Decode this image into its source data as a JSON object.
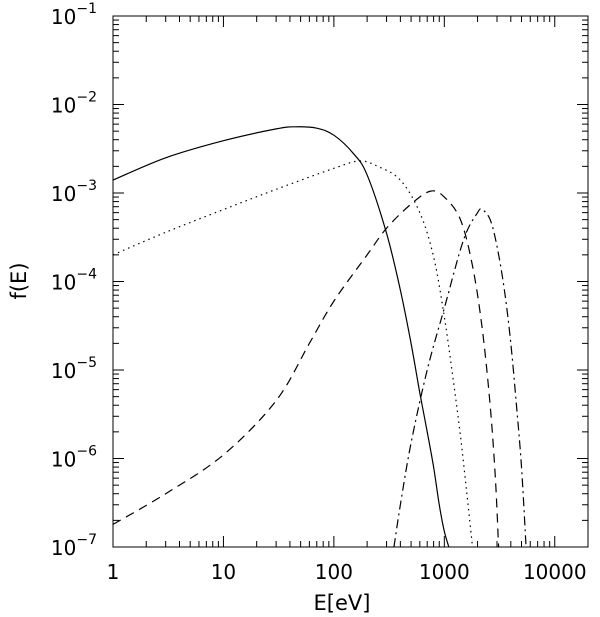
{
  "chart_data": {
    "type": "line",
    "title": "",
    "xlabel": "E[eV]",
    "ylabel": "f(E)",
    "xscale": "log",
    "yscale": "log",
    "xlim": [
      1,
      20000
    ],
    "ylim": [
      1e-07,
      0.1
    ],
    "grid": false,
    "legend": "none",
    "x_ticks": [
      {
        "value": 1,
        "label": "1"
      },
      {
        "value": 10,
        "label": "10"
      },
      {
        "value": 100,
        "label": "100"
      },
      {
        "value": 1000,
        "label": "1000"
      },
      {
        "value": 10000,
        "label": "10000"
      }
    ],
    "y_ticks": [
      {
        "value": 1e-07,
        "mantissa": "10",
        "exponent": "−7"
      },
      {
        "value": 1e-06,
        "mantissa": "10",
        "exponent": "−6"
      },
      {
        "value": 1e-05,
        "mantissa": "10",
        "exponent": "−5"
      },
      {
        "value": 0.0001,
        "mantissa": "10",
        "exponent": "−4"
      },
      {
        "value": 0.001,
        "mantissa": "10",
        "exponent": "−3"
      },
      {
        "value": 0.01,
        "mantissa": "10",
        "exponent": "−2"
      },
      {
        "value": 0.1,
        "mantissa": "10",
        "exponent": "−1"
      }
    ],
    "series": [
      {
        "style": "solid",
        "points": [
          [
            1,
            0.0014
          ],
          [
            3,
            0.0025
          ],
          [
            10,
            0.0039
          ],
          [
            30,
            0.0053
          ],
          [
            45,
            0.0056
          ],
          [
            70,
            0.0054
          ],
          [
            100,
            0.0045
          ],
          [
            150,
            0.0028
          ],
          [
            200,
            0.0016
          ],
          [
            300,
            0.00035
          ],
          [
            400,
            8e-05
          ],
          [
            500,
            2e-05
          ],
          [
            600,
            5.5e-06
          ],
          [
            700,
            2e-06
          ],
          [
            800,
            8e-07
          ],
          [
            900,
            3e-07
          ],
          [
            1000,
            1.5e-07
          ],
          [
            1100,
            1e-07
          ]
        ]
      },
      {
        "style": "dotted",
        "points": [
          [
            1,
            0.0002
          ],
          [
            3,
            0.00036
          ],
          [
            10,
            0.00065
          ],
          [
            30,
            0.0011
          ],
          [
            100,
            0.0019
          ],
          [
            170,
            0.0023
          ],
          [
            250,
            0.002
          ],
          [
            400,
            0.0014
          ],
          [
            600,
            0.0006
          ],
          [
            800,
            0.00019
          ],
          [
            1000,
            4e-05
          ],
          [
            1200,
            8e-06
          ],
          [
            1400,
            1.8e-06
          ],
          [
            1600,
            4e-07
          ],
          [
            1800,
            1e-07
          ]
        ]
      },
      {
        "style": "dashed",
        "points": [
          [
            1,
            1.8e-07
          ],
          [
            3,
            4e-07
          ],
          [
            10,
            1.1e-06
          ],
          [
            30,
            4.5e-06
          ],
          [
            60,
            2e-05
          ],
          [
            100,
            6e-05
          ],
          [
            200,
            0.0002
          ],
          [
            300,
            0.0004
          ],
          [
            500,
            0.00075
          ],
          [
            750,
            0.00105
          ],
          [
            1000,
            0.0009
          ],
          [
            1400,
            0.0005
          ],
          [
            1800,
            0.00015
          ],
          [
            2200,
            3e-05
          ],
          [
            2600,
            4e-06
          ],
          [
            2900,
            6e-07
          ],
          [
            3100,
            1e-07
          ]
        ]
      },
      {
        "style": "dash-dot",
        "points": [
          [
            350,
            1e-07
          ],
          [
            400,
            3e-07
          ],
          [
            500,
            1.5e-06
          ],
          [
            700,
            1e-05
          ],
          [
            1000,
            5e-05
          ],
          [
            1500,
            0.0003
          ],
          [
            2000,
            0.0006
          ],
          [
            2200,
            0.00065
          ],
          [
            2600,
            0.0005
          ],
          [
            3000,
            0.00025
          ],
          [
            3500,
            8e-05
          ],
          [
            4000,
            2e-05
          ],
          [
            4500,
            4e-06
          ],
          [
            5000,
            8e-07
          ],
          [
            5500,
            1e-07
          ]
        ]
      }
    ]
  }
}
